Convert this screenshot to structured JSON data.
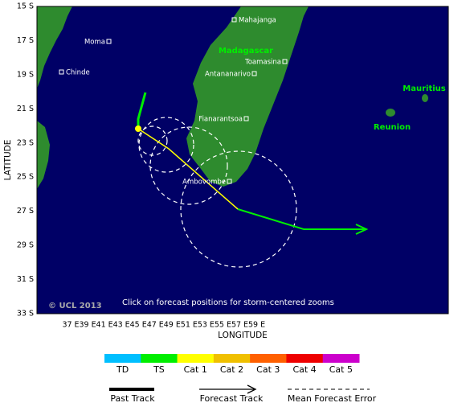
{
  "map": {
    "lat_ticks": [
      "15 S",
      "17 S",
      "19 S",
      "21 S",
      "23 S",
      "25 S",
      "27 S",
      "29 S",
      "31 S",
      "33 S"
    ],
    "lon_ticks": [
      "37 E",
      "39 E",
      "41 E",
      "43 E",
      "45 E",
      "47 E",
      "49 E",
      "51 E",
      "53 E",
      "55 E",
      "57 E",
      "59 E"
    ],
    "x_axis_label": "LONGITUDE",
    "y_axis_label": "LATITUDE",
    "places": [
      "Mahajanga",
      "Moma",
      "Chinde",
      "Toamasina",
      "Antananarivo",
      "Fianarantsoa",
      "Ambovombe"
    ],
    "regions": [
      "Madagascar",
      "Mauritius",
      "Reunion"
    ],
    "note": "Click on forecast positions for storm-centered zooms",
    "copyright": "© UCL 2013"
  },
  "legend": {
    "categories": [
      {
        "label": "TD",
        "color": "#00bfff"
      },
      {
        "label": "TS",
        "color": "#00ee00"
      },
      {
        "label": "Cat 1",
        "color": "#ffff00"
      },
      {
        "label": "Cat 2",
        "color": "#f0c000"
      },
      {
        "label": "Cat 3",
        "color": "#ff6000"
      },
      {
        "label": "Cat 4",
        "color": "#ee0000"
      },
      {
        "label": "Cat 5",
        "color": "#cc00cc"
      }
    ],
    "lines": [
      "Past Track",
      "Forecast Track",
      "Mean Forecast Error"
    ]
  }
}
